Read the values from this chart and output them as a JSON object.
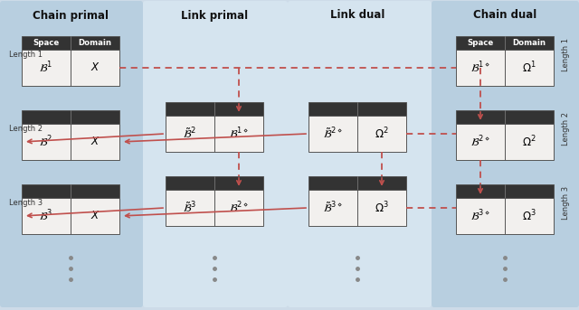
{
  "bg_color": "#cddbe8",
  "col_bg_left": "#b8cfe0",
  "col_bg_mid": "#d5e4ef",
  "col_bg_right": "#b8cfe0",
  "header_dark": "#333333",
  "header_text": "#ffffff",
  "cell_bg": "#f2f0ee",
  "cell_border": "#555555",
  "arrow_color": "#c0504d",
  "col_headers": [
    "Chain primal",
    "Link primal",
    "Link dual",
    "Chain dual"
  ],
  "row_labels_left": [
    "Length 1",
    "Length 2",
    "Length 3"
  ],
  "row_labels_right": [
    "Length 1",
    "Length 2",
    "Length 3"
  ],
  "cp_tables": [
    {
      "left": "$\\mathcal{B}^1$",
      "right": "$X$",
      "header": true
    },
    {
      "left": "$\\mathcal{B}^2$",
      "right": "$X$",
      "header": false
    },
    {
      "left": "$\\mathcal{B}^3$",
      "right": "$X$",
      "header": false
    }
  ],
  "lp_tables": [
    {
      "left": "$\\tilde{\\mathcal{B}}^2$",
      "right": "$\\mathcal{B}^{1\\diamond}$"
    },
    {
      "left": "$\\tilde{\\mathcal{B}}^3$",
      "right": "$\\mathcal{B}^{2\\diamond}$"
    }
  ],
  "ld_tables": [
    {
      "left": "$\\tilde{\\mathcal{B}}^{2\\diamond}$",
      "right": "$\\Omega^2$"
    },
    {
      "left": "$\\tilde{\\mathcal{B}}^{3\\diamond}$",
      "right": "$\\Omega^3$"
    }
  ],
  "cd_tables": [
    {
      "left": "$\\mathcal{B}^{1\\diamond}$",
      "right": "$\\Omega^1$",
      "header": true
    },
    {
      "left": "$\\mathcal{B}^{2\\diamond}$",
      "right": "$\\Omega^2$",
      "header": false
    },
    {
      "left": "$\\mathcal{B}^{3\\diamond}$",
      "right": "$\\Omega^3$",
      "header": false
    }
  ]
}
